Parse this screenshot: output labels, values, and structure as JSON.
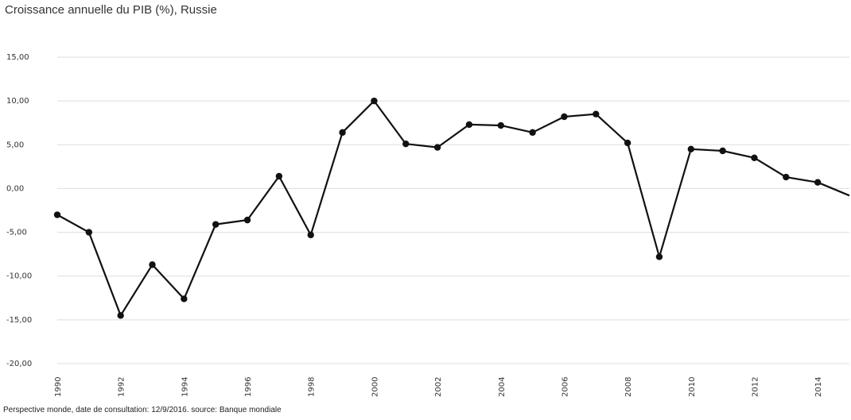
{
  "chart_data": {
    "type": "line",
    "title": "Croissance annuelle du PIB (%), Russie",
    "source": "Perspective monde, date de consultation: 12/9/2016. source: Banque mondiale",
    "ylim": [
      -20,
      15
    ],
    "yticks": [
      "15,00",
      "10,00",
      "5,00",
      "0,00",
      "-5,00",
      "-10,00",
      "-15,00",
      "-20,00"
    ],
    "xticks": [
      "1990",
      "1992",
      "1994",
      "1996",
      "1998",
      "2000",
      "2002",
      "2004",
      "2006",
      "2008",
      "2010",
      "2012",
      "2014"
    ],
    "grid": true,
    "legend": "none",
    "line_color": "#111111",
    "series": [
      {
        "x": [
          1990,
          1991,
          1992,
          1993,
          1994,
          1995,
          1996,
          1997,
          1998,
          1999,
          2000,
          2001,
          2002,
          2003,
          2004,
          2005,
          2006,
          2007,
          2008,
          2009,
          2010,
          2011,
          2012,
          2013,
          2014
        ],
        "values": [
          -3.0,
          -5.0,
          -14.5,
          -8.7,
          -12.6,
          -4.1,
          -3.6,
          1.4,
          -5.3,
          6.4,
          10.0,
          5.1,
          4.7,
          7.3,
          7.2,
          6.4,
          8.2,
          8.5,
          5.2,
          -7.8,
          4.5,
          4.3,
          3.5,
          1.3,
          0.7
        ]
      }
    ],
    "x_end": 2015,
    "y_end": -0.8
  }
}
